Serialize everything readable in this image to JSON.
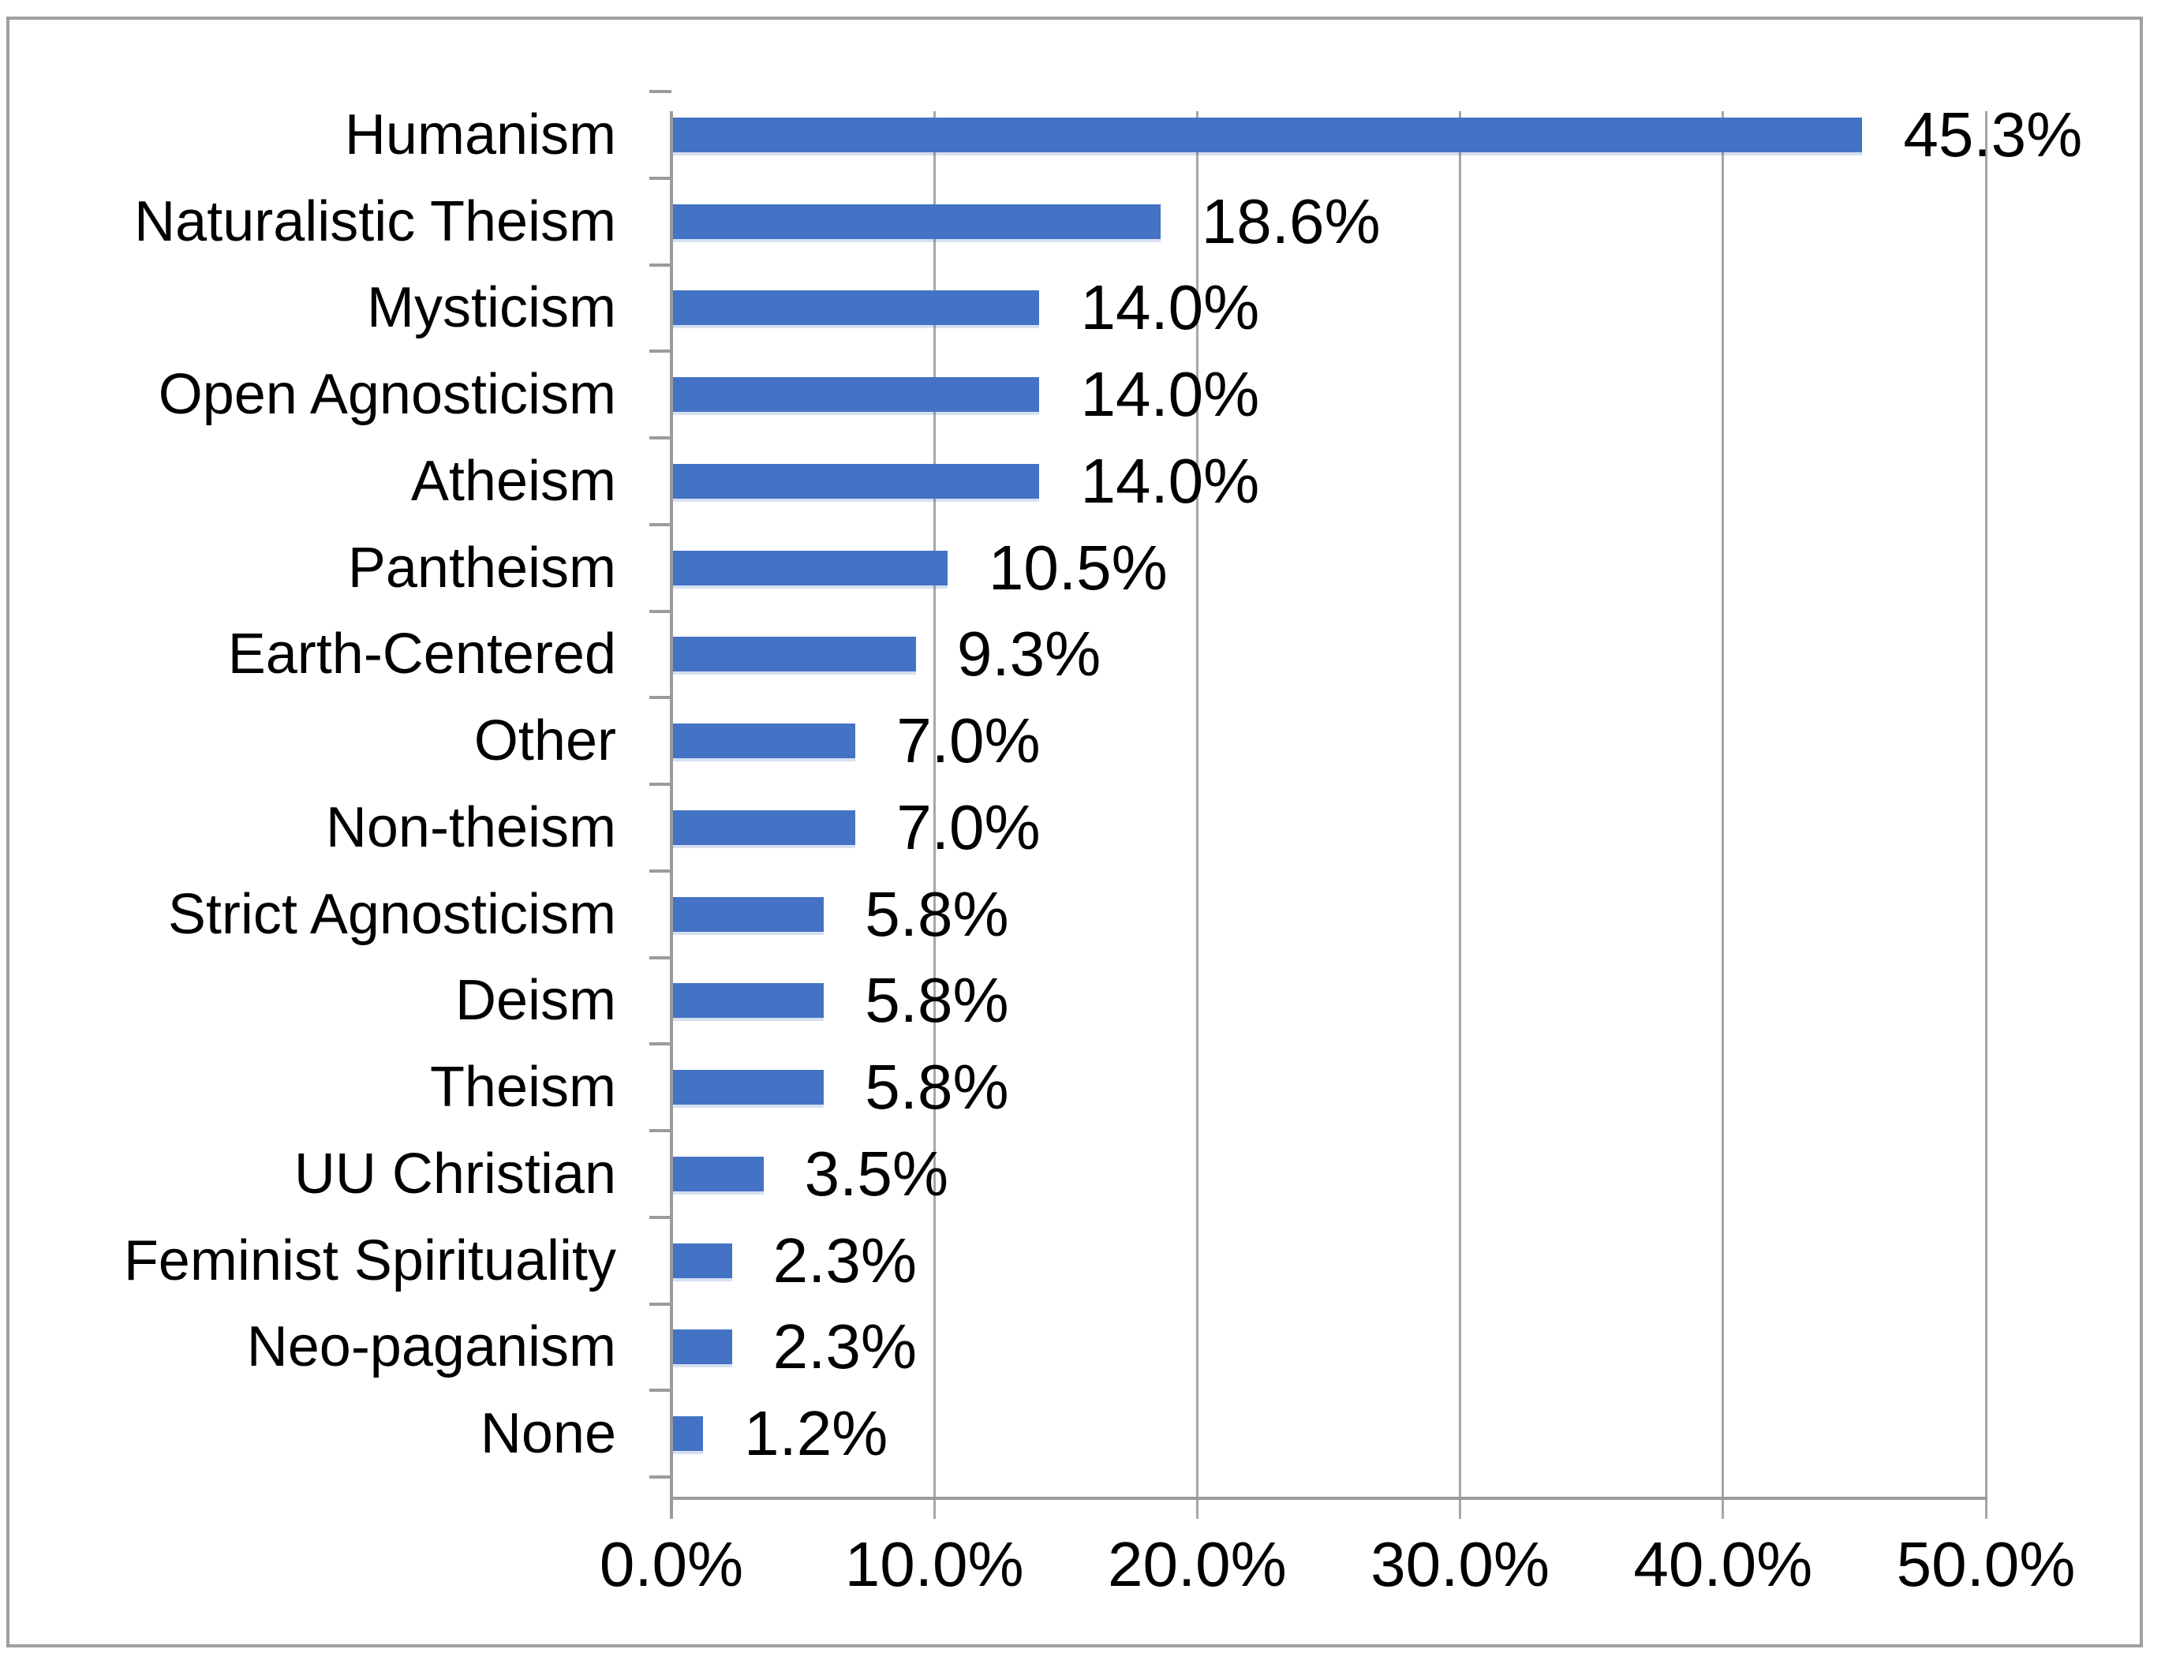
{
  "chart_data": {
    "type": "bar",
    "orientation": "horizontal",
    "title": "",
    "xlabel": "",
    "ylabel": "",
    "categories": [
      "Humanism",
      "Naturalistic Theism",
      "Mysticism",
      "Open Agnosticism",
      "Atheism",
      "Pantheism",
      "Earth-Centered",
      "Other",
      "Non-theism",
      "Strict Agnosticism",
      "Deism",
      "Theism",
      "UU Christian",
      "Feminist Spirituality",
      "Neo-paganism",
      "None"
    ],
    "values": [
      45.3,
      18.6,
      14.0,
      14.0,
      14.0,
      10.5,
      9.3,
      7.0,
      7.0,
      5.8,
      5.8,
      5.8,
      3.5,
      2.3,
      2.3,
      1.2
    ],
    "value_labels": [
      "45.3%",
      "18.6%",
      "14.0%",
      "14.0%",
      "14.0%",
      "10.5%",
      "9.3%",
      "7.0%",
      "7.0%",
      "5.8%",
      "5.8%",
      "5.8%",
      "3.5%",
      "2.3%",
      "2.3%",
      "1.2%"
    ],
    "x_ticks": [
      "0.0%",
      "10.0%",
      "20.0%",
      "30.0%",
      "40.0%",
      "50.0%"
    ],
    "x_tick_values": [
      0,
      10,
      20,
      30,
      40,
      50
    ],
    "xlim": [
      0,
      50
    ],
    "grid": true,
    "legend": "none",
    "colors": {
      "bar": "#4472C4",
      "bar_shadow": "rgba(68,114,196,0.22)",
      "gridline": "#a6a6a6",
      "axis": "#9b9b9b",
      "frame_border": "#a0a0a0",
      "text": "#000000",
      "background": "#ffffff"
    }
  }
}
